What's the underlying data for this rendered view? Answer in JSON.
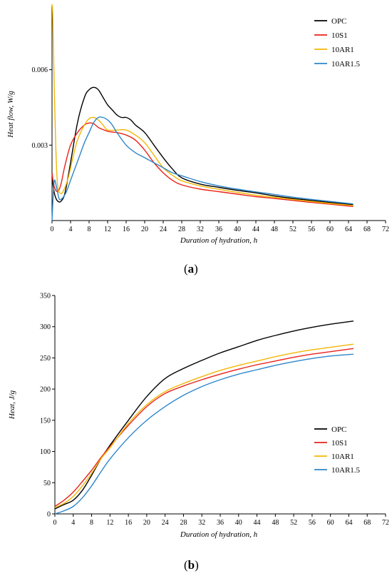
{
  "chart_data": [
    {
      "type": "line",
      "panel_label": "a",
      "xlabel": "Duration of hydration, h",
      "ylabel": "Heat flow, W/g",
      "xlim": [
        0,
        72
      ],
      "ylim": [
        0,
        0.0086
      ],
      "x_ticks": [
        0,
        4,
        8,
        12,
        16,
        20,
        24,
        28,
        32,
        36,
        40,
        44,
        48,
        52,
        56,
        60,
        64,
        68,
        72
      ],
      "y_ticks": [
        0.003,
        0.006
      ],
      "y_tick_labels": [
        "0.003",
        "0.006"
      ],
      "grid": false,
      "legend_position": "top-right",
      "series": [
        {
          "name": "OPC",
          "color": "#000000",
          "x": [
            0,
            0.3,
            0.8,
            1.4,
            2,
            2.8,
            4,
            5.5,
            7,
            8,
            9,
            10,
            11,
            12,
            13,
            14,
            15,
            16,
            17,
            18,
            20,
            22,
            24,
            26,
            28,
            32,
            36,
            40,
            44,
            48,
            52,
            56,
            60,
            65
          ],
          "y": [
            0.0019,
            0.0013,
            0.0009,
            0.00075,
            0.00078,
            0.0011,
            0.0023,
            0.0039,
            0.0049,
            0.0052,
            0.0053,
            0.0052,
            0.0049,
            0.0046,
            0.0044,
            0.0042,
            0.0041,
            0.0041,
            0.004,
            0.0038,
            0.0035,
            0.003,
            0.0025,
            0.00205,
            0.0017,
            0.00145,
            0.00132,
            0.0012,
            0.0011,
            0.00098,
            0.00088,
            0.0008,
            0.00072,
            0.00063
          ]
        },
        {
          "name": "10S1",
          "color": "#e8231a",
          "x": [
            0,
            0.3,
            0.8,
            1.4,
            2,
            2.8,
            4,
            5.5,
            7,
            8,
            9,
            10,
            11,
            12,
            13,
            14,
            16,
            18,
            20,
            22,
            24,
            26,
            28,
            32,
            36,
            40,
            44,
            48,
            52,
            56,
            60,
            65
          ],
          "y": [
            0.0019,
            0.0015,
            0.0012,
            0.00118,
            0.0015,
            0.0022,
            0.003,
            0.0035,
            0.0038,
            0.00388,
            0.00385,
            0.0037,
            0.00362,
            0.00355,
            0.00352,
            0.0035,
            0.0034,
            0.0032,
            0.0028,
            0.0023,
            0.0019,
            0.0016,
            0.00142,
            0.00125,
            0.00115,
            0.00105,
            0.00095,
            0.00088,
            0.0008,
            0.00072,
            0.00065,
            0.00056
          ]
        },
        {
          "name": "10AR1",
          "color": "#f2b705",
          "x": [
            0,
            0.15,
            0.4,
            0.8,
            1.2,
            1.8,
            2.5,
            3.5,
            4.5,
            5.5,
            7,
            8,
            9,
            10,
            11,
            12,
            14,
            16,
            18,
            20,
            22,
            24,
            26,
            28,
            32,
            36,
            40,
            44,
            48,
            52,
            56,
            60,
            65
          ],
          "y": [
            0.0086,
            0.0082,
            0.006,
            0.003,
            0.0014,
            0.00108,
            0.0012,
            0.0017,
            0.0025,
            0.0032,
            0.0038,
            0.00405,
            0.0041,
            0.004,
            0.0038,
            0.0036,
            0.0036,
            0.0036,
            0.0034,
            0.0031,
            0.0026,
            0.0021,
            0.0018,
            0.00158,
            0.00138,
            0.00124,
            0.00112,
            0.00101,
            0.00092,
            0.00084,
            0.00076,
            0.00068,
            0.0006
          ]
        },
        {
          "name": "10AR1.5",
          "color": "#2e86c9",
          "x": [
            0,
            0.2,
            0.5,
            1,
            1.5,
            2,
            3,
            4,
            5,
            6,
            7,
            8,
            9,
            10,
            11,
            12,
            13,
            14,
            16,
            18,
            20,
            22,
            24,
            26,
            28,
            32,
            36,
            40,
            44,
            48,
            52,
            56,
            60,
            65
          ],
          "y": [
            0.0,
            0.0008,
            0.0016,
            0.0013,
            0.00088,
            0.00085,
            0.0011,
            0.0016,
            0.0021,
            0.0026,
            0.0031,
            0.0035,
            0.0039,
            0.0041,
            0.0041,
            0.004,
            0.0038,
            0.0035,
            0.003,
            0.0027,
            0.0025,
            0.0023,
            0.0021,
            0.0019,
            0.00178,
            0.00155,
            0.00138,
            0.00125,
            0.00114,
            0.00104,
            0.00093,
            0.00084,
            0.00076,
            0.00066
          ]
        }
      ]
    },
    {
      "type": "line",
      "panel_label": "b",
      "xlabel": "Duration of hydration, h",
      "ylabel": "Heat, J/g",
      "xlim": [
        0,
        72
      ],
      "ylim": [
        0,
        350
      ],
      "x_ticks": [
        0,
        4,
        8,
        12,
        16,
        20,
        24,
        28,
        32,
        36,
        40,
        44,
        48,
        52,
        56,
        60,
        64,
        68,
        72
      ],
      "y_ticks": [
        0,
        50,
        100,
        150,
        200,
        250,
        300,
        350
      ],
      "y_tick_labels": [
        "0",
        "50",
        "100",
        "150",
        "200",
        "250",
        "300",
        "350"
      ],
      "grid": false,
      "legend_position": "bottom-right",
      "series": [
        {
          "name": "OPC",
          "color": "#000000",
          "x": [
            0,
            2,
            4,
            6,
            8,
            10,
            12,
            16,
            20,
            24,
            28,
            32,
            36,
            40,
            44,
            48,
            52,
            56,
            60,
            65
          ],
          "y": [
            8,
            15,
            22,
            38,
            62,
            88,
            110,
            150,
            188,
            217,
            233,
            246,
            258,
            268,
            278,
            286,
            293,
            299,
            304,
            309
          ]
        },
        {
          "name": "10S1",
          "color": "#e8231a",
          "x": [
            0,
            2,
            4,
            6,
            8,
            10,
            12,
            16,
            20,
            24,
            28,
            32,
            36,
            40,
            44,
            48,
            52,
            56,
            60,
            65
          ],
          "y": [
            12,
            22,
            35,
            52,
            70,
            90,
            108,
            142,
            172,
            193,
            205,
            215,
            224,
            232,
            239,
            245,
            251,
            256,
            260,
            265
          ]
        },
        {
          "name": "10AR1",
          "color": "#f2b705",
          "x": [
            0,
            2,
            4,
            6,
            8,
            10,
            12,
            16,
            20,
            24,
            28,
            32,
            36,
            40,
            44,
            48,
            52,
            56,
            60,
            65
          ],
          "y": [
            10,
            17,
            28,
            45,
            65,
            88,
            106,
            145,
            175,
            196,
            209,
            220,
            230,
            238,
            245,
            252,
            258,
            263,
            267,
            272
          ]
        },
        {
          "name": "10AR1.5",
          "color": "#2e86c9",
          "x": [
            0,
            2,
            4,
            6,
            8,
            10,
            12,
            16,
            20,
            24,
            28,
            32,
            36,
            40,
            44,
            48,
            52,
            56,
            60,
            65
          ],
          "y": [
            0,
            5,
            12,
            26,
            45,
            67,
            88,
            122,
            150,
            172,
            190,
            204,
            215,
            224,
            231,
            238,
            244,
            249,
            253,
            256
          ]
        }
      ]
    }
  ]
}
